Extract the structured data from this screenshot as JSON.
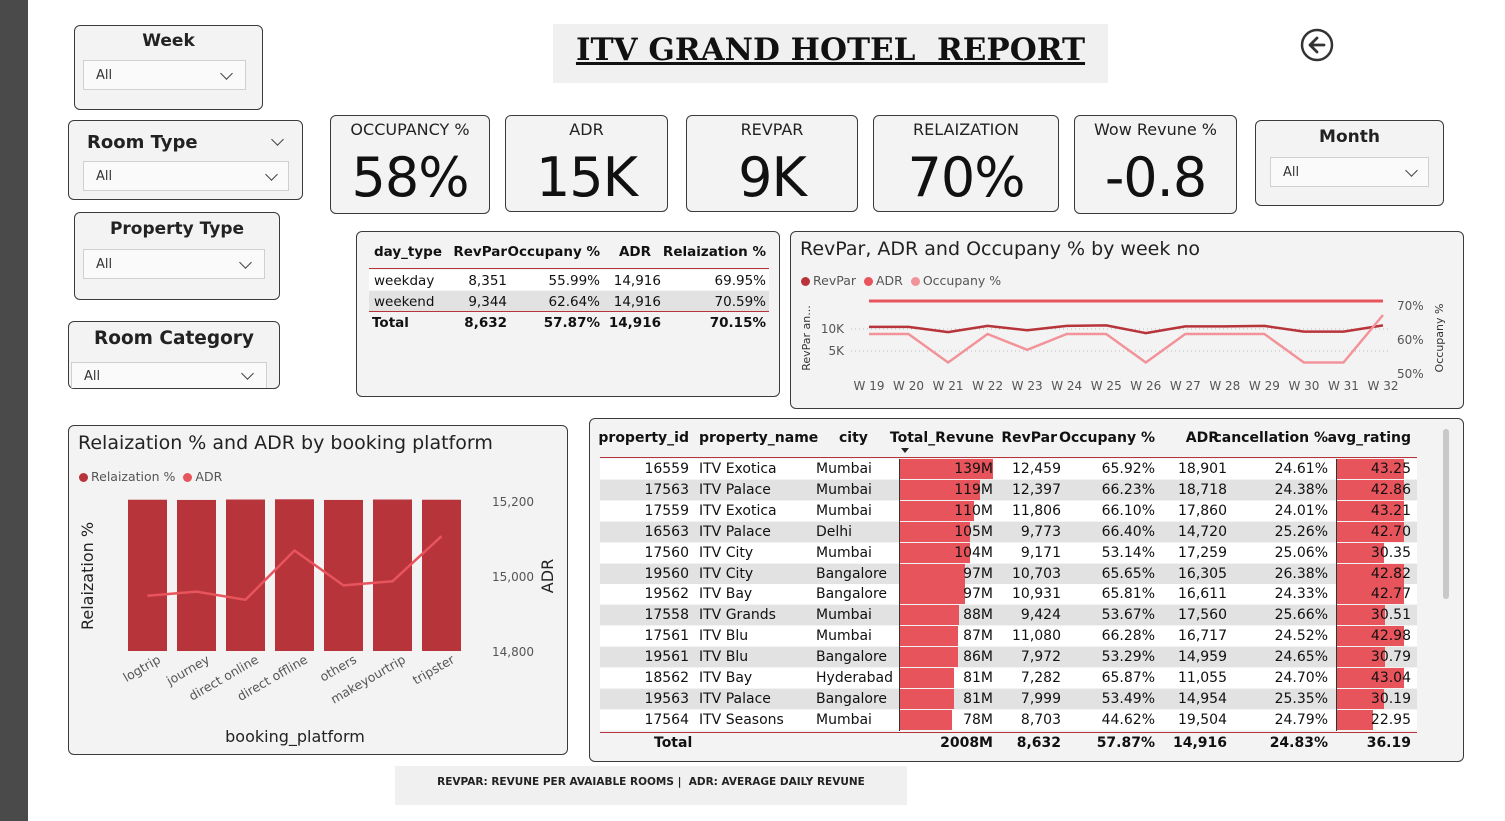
{
  "report": {
    "title": "ITV GRAND HOTEL  REPORT"
  },
  "colors": {
    "accent": "#b8343b",
    "accent_light": "#e8545c",
    "line_light": "#f2939a"
  },
  "slicers": {
    "week": {
      "title": "Week",
      "value": "All"
    },
    "room_type": {
      "title": "Room Type",
      "value": "All"
    },
    "property_type": {
      "title": "Property Type",
      "value": "All"
    },
    "room_category": {
      "title": "Room Category",
      "value": "All"
    },
    "month": {
      "title": "Month",
      "value": "All"
    }
  },
  "kpis": [
    {
      "label": "OCCUPANCY %",
      "value": "58%"
    },
    {
      "label": "ADR",
      "value": "15K"
    },
    {
      "label": "REVPAR",
      "value": "9K"
    },
    {
      "label": "RELAIZATION",
      "value": "70%"
    },
    {
      "label": "Wow Revune %",
      "value": "-0.8"
    }
  ],
  "day_type_table": {
    "headers": [
      "day_type",
      "RevPar",
      "Occupany %",
      "ADR",
      "Relaization %"
    ],
    "rows": [
      [
        "weekday",
        "8,351",
        "55.99%",
        "14,916",
        "69.95%"
      ],
      [
        "weekend",
        "9,344",
        "62.64%",
        "14,916",
        "70.59%"
      ]
    ],
    "total": [
      "Total",
      "8,632",
      "57.87%",
      "14,916",
      "70.15%"
    ]
  },
  "week_chart": {
    "title": "RevPar, ADR and Occupany % by week no",
    "legend": [
      "RevPar",
      "ADR",
      "Occupany %"
    ],
    "y_left_label": "RevPar an...",
    "y_left_ticks": [
      "10K",
      "5K"
    ],
    "y_right_label": "Occupany %",
    "y_right_ticks": [
      "70%",
      "60%",
      "50%"
    ]
  },
  "platform_chart": {
    "title": "Relaization % and ADR by booking platform",
    "legend": [
      "Relaization %",
      "ADR"
    ],
    "xlabel": "booking_platform",
    "ylabel_left": "Relaization %",
    "ylabel_right": "ADR",
    "y_right_ticks": [
      "15,200",
      "15,000",
      "14,800"
    ]
  },
  "chart_data": [
    {
      "type": "line",
      "x": [
        "W 19",
        "W 20",
        "W 21",
        "W 22",
        "W 23",
        "W 24",
        "W 25",
        "W 26",
        "W 27",
        "W 28",
        "W 29",
        "W 30",
        "W 31",
        "W 32"
      ],
      "series": [
        {
          "name": "ADR",
          "axis": "left",
          "values": [
            14950,
            14950,
            14950,
            14950,
            14950,
            14950,
            14950,
            14950,
            14950,
            14950,
            14950,
            14950,
            14950,
            14950
          ]
        },
        {
          "name": "RevPar",
          "axis": "left",
          "values": [
            9500,
            9500,
            8400,
            9700,
            8800,
            9700,
            9800,
            8200,
            9600,
            9600,
            9700,
            8500,
            8500,
            9800
          ]
        },
        {
          "name": "Occupany %",
          "axis": "right",
          "values": [
            60,
            60,
            51,
            60,
            55,
            60,
            60,
            51,
            60,
            60,
            60,
            51,
            51,
            66
          ]
        }
      ],
      "ylim_left": [
        0,
        16000
      ],
      "ylim_right": [
        48,
        72
      ]
    },
    {
      "type": "bar",
      "categories": [
        "logtrip",
        "journey",
        "direct online",
        "direct offline",
        "others",
        "makeyourtrip",
        "tripster"
      ],
      "series": [
        {
          "name": "Relaization %",
          "axis": "left",
          "values": [
            70.1,
            70.0,
            70.2,
            70.3,
            70.0,
            70.2,
            70.1
          ]
        },
        {
          "name": "ADR",
          "axis": "right",
          "values": [
            14885,
            14895,
            14875,
            14995,
            14910,
            14920,
            15030
          ]
        }
      ],
      "ylim_left": [
        0,
        95
      ],
      "ylim_right": [
        14750,
        15250
      ]
    }
  ],
  "property_table": {
    "headers": [
      "property_id",
      "property_name",
      "city",
      "Total_Revune",
      "RevPar",
      "Occupany %",
      "ADR",
      "cancellation %",
      "avg_rating"
    ],
    "rows": [
      [
        "16559",
        "ITV Exotica",
        "Mumbai",
        "139M",
        "12,459",
        "65.92%",
        "18,901",
        "24.61%",
        "43.25"
      ],
      [
        "17563",
        "ITV Palace",
        "Mumbai",
        "119M",
        "12,397",
        "66.23%",
        "18,718",
        "24.38%",
        "42.86"
      ],
      [
        "17559",
        "ITV Exotica",
        "Mumbai",
        "110M",
        "11,806",
        "66.10%",
        "17,860",
        "24.01%",
        "43.21"
      ],
      [
        "16563",
        "ITV Palace",
        "Delhi",
        "105M",
        "9,773",
        "66.40%",
        "14,720",
        "25.26%",
        "42.70"
      ],
      [
        "17560",
        "ITV City",
        "Mumbai",
        "104M",
        "9,171",
        "53.14%",
        "17,259",
        "25.06%",
        "30.35"
      ],
      [
        "19560",
        "ITV City",
        "Bangalore",
        "97M",
        "10,703",
        "65.65%",
        "16,305",
        "26.38%",
        "42.82"
      ],
      [
        "19562",
        "ITV Bay",
        "Bangalore",
        "97M",
        "10,931",
        "65.81%",
        "16,611",
        "24.33%",
        "42.77"
      ],
      [
        "17558",
        "ITV Grands",
        "Mumbai",
        "88M",
        "9,424",
        "53.67%",
        "17,560",
        "25.66%",
        "30.51"
      ],
      [
        "17561",
        "ITV Blu",
        "Mumbai",
        "87M",
        "11,080",
        "66.28%",
        "16,717",
        "24.52%",
        "42.98"
      ],
      [
        "19561",
        "ITV Blu",
        "Bangalore",
        "86M",
        "7,972",
        "53.29%",
        "14,959",
        "24.65%",
        "30.79"
      ],
      [
        "18562",
        "ITV Bay",
        "Hyderabad",
        "81M",
        "7,282",
        "65.87%",
        "11,055",
        "24.70%",
        "43.04"
      ],
      [
        "19563",
        "ITV Palace",
        "Bangalore",
        "81M",
        "7,999",
        "53.49%",
        "14,954",
        "25.35%",
        "30.19"
      ],
      [
        "17564",
        "ITV Seasons",
        "Mumbai",
        "78M",
        "8,703",
        "44.62%",
        "19,504",
        "24.79%",
        "22.95"
      ]
    ],
    "revenue_values_m": [
      139,
      119,
      110,
      105,
      104,
      97,
      97,
      88,
      87,
      86,
      81,
      81,
      78
    ],
    "rating_values": [
      43.25,
      42.86,
      43.21,
      42.7,
      30.35,
      42.82,
      42.77,
      30.51,
      42.98,
      30.79,
      43.04,
      30.19,
      22.95
    ],
    "total": [
      "Total",
      "",
      "",
      "2008M",
      "8,632",
      "57.87%",
      "14,916",
      "24.83%",
      "36.19"
    ]
  },
  "footer": {
    "note": "REVPAR: REVUNE PER AVAIABLE ROOMS |  ADR: AVERAGE DAILY REVUNE"
  }
}
